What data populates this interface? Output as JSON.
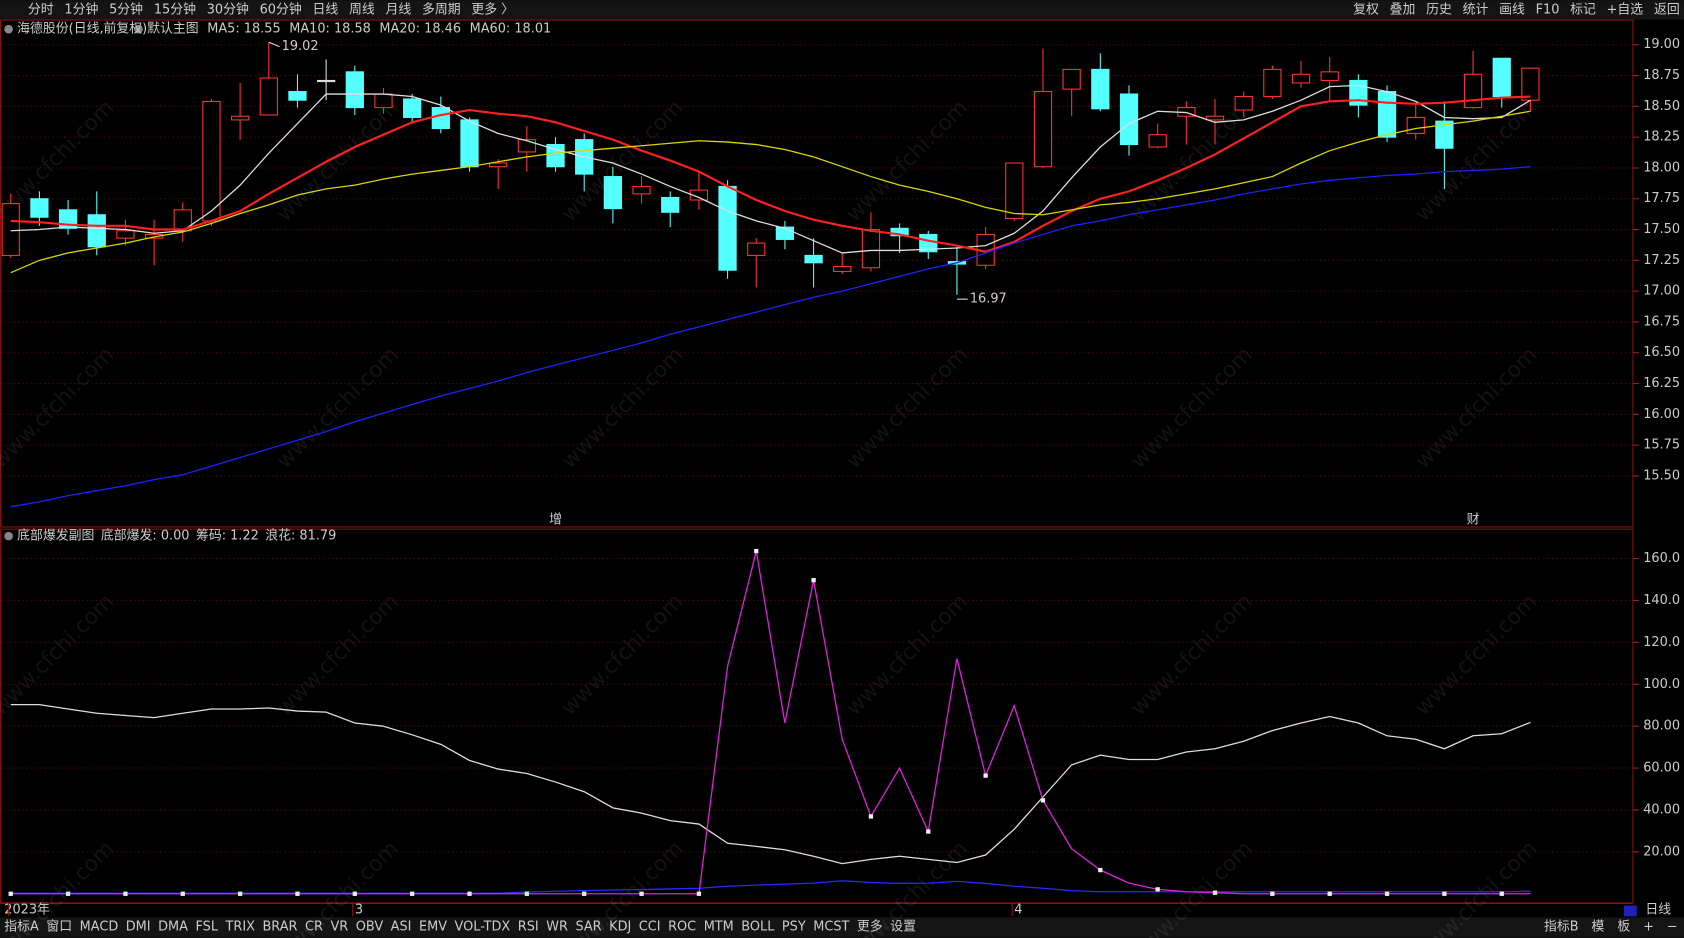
{
  "toolbar": {
    "periods": [
      "分时",
      "1分钟",
      "5分钟",
      "15分钟",
      "30分钟",
      "60分钟",
      "日线",
      "周线",
      "月线",
      "多周期",
      "更多 〉"
    ],
    "selected": "日线",
    "tools": [
      "复权",
      "叠加",
      "历史",
      "统计",
      "画线",
      "F10",
      "标记",
      "+自选",
      "返回"
    ]
  },
  "watermark": "www.cfchi.com",
  "chart_data": [
    {
      "type": "candlestick",
      "title": "海德股份(日线,前复权)",
      "subtitle": "默认主图",
      "categories": [
        "2023年",
        null,
        null,
        null,
        null,
        null,
        null,
        null,
        null,
        null,
        null,
        null,
        "3",
        null,
        null,
        null,
        null,
        null,
        null,
        null,
        null,
        null,
        null,
        null,
        null,
        null,
        null,
        null,
        null,
        null,
        null,
        null,
        null,
        null,
        null,
        "4",
        null,
        null,
        null,
        null,
        null,
        null,
        null,
        null,
        null,
        null,
        null,
        null,
        null,
        null,
        null,
        null,
        null,
        null
      ],
      "open": [
        17.29,
        17.75,
        17.66,
        17.62,
        17.43,
        17.43,
        17.49,
        17.57,
        18.39,
        18.43,
        18.62,
        18.71,
        18.78,
        18.49,
        18.56,
        18.49,
        18.39,
        18.01,
        18.13,
        18.19,
        18.23,
        17.93,
        17.79,
        17.76,
        17.74,
        17.85,
        17.29,
        17.52,
        17.29,
        17.16,
        17.19,
        17.51,
        17.46,
        17.24,
        17.21,
        17.59,
        18.01,
        18.64,
        18.8,
        18.6,
        18.17,
        18.42,
        18.39,
        18.47,
        18.58,
        18.69,
        18.71,
        18.71,
        18.62,
        18.28,
        18.38,
        18.49,
        18.89,
        18.55
      ],
      "high": [
        17.79,
        17.81,
        17.74,
        17.81,
        17.58,
        17.58,
        17.72,
        18.56,
        18.69,
        19.02,
        18.76,
        18.88,
        18.83,
        18.65,
        18.6,
        18.58,
        18.41,
        18.07,
        18.34,
        18.25,
        18.28,
        18.01,
        17.93,
        17.81,
        17.97,
        17.9,
        17.43,
        17.57,
        17.43,
        17.31,
        17.64,
        17.55,
        17.49,
        17.36,
        17.52,
        18.04,
        18.97,
        18.8,
        18.93,
        18.67,
        18.36,
        18.54,
        18.56,
        18.62,
        18.83,
        18.87,
        18.9,
        18.76,
        18.67,
        18.53,
        18.54,
        18.95,
        18.89,
        18.81
      ],
      "low": [
        17.27,
        17.53,
        17.46,
        17.29,
        17.37,
        17.21,
        17.4,
        17.53,
        18.23,
        18.43,
        18.49,
        18.55,
        18.43,
        18.44,
        18.36,
        18.28,
        17.97,
        17.83,
        17.97,
        17.97,
        17.81,
        17.55,
        17.71,
        17.52,
        17.66,
        17.1,
        17.03,
        17.34,
        17.03,
        17.14,
        17.16,
        17.31,
        17.26,
        16.97,
        17.18,
        17.57,
        18.0,
        18.42,
        18.46,
        18.1,
        18.16,
        18.19,
        18.19,
        18.41,
        18.56,
        18.65,
        18.54,
        18.41,
        18.21,
        18.23,
        17.83,
        18.48,
        18.49,
        18.46
      ],
      "close": [
        17.71,
        17.6,
        17.51,
        17.36,
        17.49,
        17.46,
        17.66,
        18.54,
        18.42,
        18.73,
        18.55,
        18.71,
        18.49,
        18.6,
        18.41,
        18.32,
        18.01,
        18.04,
        18.23,
        18.01,
        17.95,
        17.67,
        17.85,
        17.64,
        17.82,
        17.17,
        17.39,
        17.42,
        17.23,
        17.2,
        17.5,
        17.45,
        17.32,
        17.22,
        17.46,
        18.04,
        18.62,
        18.8,
        18.48,
        18.19,
        18.27,
        18.49,
        18.42,
        18.58,
        18.8,
        18.76,
        18.78,
        18.51,
        18.25,
        18.41,
        18.16,
        18.76,
        18.58,
        18.81
      ],
      "up_color": "#ff3232",
      "down_color": "#54ffff",
      "series": [
        {
          "name": "MA5: 18.55",
          "color": "#dddddd",
          "values": [
            17.49,
            17.5,
            17.52,
            17.51,
            17.5,
            17.47,
            17.49,
            17.65,
            17.86,
            18.12,
            18.36,
            18.6,
            18.6,
            18.6,
            18.58,
            18.51,
            18.38,
            18.28,
            18.22,
            18.15,
            18.09,
            18.04,
            17.95,
            17.85,
            17.76,
            17.65,
            17.57,
            17.51,
            17.41,
            17.31,
            17.33,
            17.33,
            17.34,
            17.35,
            17.37,
            17.47,
            17.65,
            17.92,
            18.17,
            18.36,
            18.46,
            18.45,
            18.37,
            18.39,
            18.46,
            18.55,
            18.66,
            18.67,
            18.62,
            18.54,
            18.41,
            18.4,
            18.41,
            18.55
          ]
        },
        {
          "name": "MA10: 18.58",
          "color": "#ff2020",
          "values": [
            17.57,
            17.56,
            17.54,
            17.53,
            17.53,
            17.5,
            17.5,
            17.57,
            17.65,
            17.79,
            17.92,
            18.05,
            18.17,
            18.27,
            18.37,
            18.43,
            18.47,
            18.44,
            18.42,
            18.37,
            18.3,
            18.23,
            18.14,
            18.06,
            17.97,
            17.85,
            17.74,
            17.65,
            17.58,
            17.53,
            17.49,
            17.46,
            17.41,
            17.37,
            17.32,
            17.4,
            17.53,
            17.65,
            17.75,
            17.81,
            17.9,
            18.0,
            18.11,
            18.24,
            18.37,
            18.5,
            18.54,
            18.55,
            18.53,
            18.52,
            18.53,
            18.55,
            18.57,
            18.58
          ]
        },
        {
          "name": "MA20: 18.46",
          "color": "#d6d600",
          "values": [
            17.15,
            17.25,
            17.31,
            17.35,
            17.39,
            17.44,
            17.48,
            17.55,
            17.63,
            17.7,
            17.78,
            17.83,
            17.86,
            17.91,
            17.95,
            17.98,
            18.01,
            18.05,
            18.09,
            18.12,
            18.14,
            18.16,
            18.18,
            18.2,
            18.22,
            18.21,
            18.19,
            18.15,
            18.09,
            18.01,
            17.93,
            17.86,
            17.81,
            17.75,
            17.68,
            17.63,
            17.62,
            17.66,
            17.7,
            17.72,
            17.75,
            17.79,
            17.83,
            17.88,
            17.93,
            18.04,
            18.14,
            18.21,
            18.27,
            18.32,
            18.35,
            18.38,
            18.42,
            18.46
          ]
        },
        {
          "name": "MA60: 18.01",
          "color": "#2020ff",
          "values": [
            15.25,
            15.29,
            15.34,
            15.38,
            15.42,
            15.47,
            15.51,
            15.58,
            15.65,
            15.72,
            15.79,
            15.86,
            15.94,
            16.01,
            16.08,
            16.15,
            16.21,
            16.27,
            16.34,
            16.4,
            16.46,
            16.52,
            16.58,
            16.65,
            16.71,
            16.77,
            16.83,
            16.89,
            16.95,
            17.0,
            17.06,
            17.12,
            17.18,
            17.23,
            17.31,
            17.39,
            17.46,
            17.53,
            17.57,
            17.62,
            17.66,
            17.7,
            17.74,
            17.79,
            17.83,
            17.87,
            17.9,
            17.92,
            17.94,
            17.95,
            17.97,
            17.98,
            17.99,
            18.01
          ]
        }
      ],
      "high_label": {
        "index": 9,
        "text": "19.02"
      },
      "low_label": {
        "index": 33,
        "text": "16.97"
      },
      "event_labels": [
        {
          "index": 19,
          "text": "增"
        },
        {
          "index": 51,
          "text": "财"
        }
      ],
      "ylim": [
        15.09,
        19.1
      ],
      "yticks": [
        {
          "value": 19,
          "label": "19.00"
        },
        18.75,
        {
          "value": 18.5,
          "label": "18.50"
        },
        18.25,
        {
          "value": 18,
          "label": "18.00"
        },
        17.75,
        {
          "value": 17.5,
          "label": "17.50"
        },
        17.25,
        {
          "value": 17,
          "label": "17.00"
        },
        16.75,
        {
          "value": 16.5,
          "label": "16.50"
        },
        16.25,
        {
          "value": 16,
          "label": "16.00"
        },
        15.75,
        {
          "value": 15.5,
          "label": "15.50"
        }
      ],
      "grid": true
    },
    {
      "type": "line",
      "title": "底部爆发副图",
      "series": [
        {
          "name": "底部爆发: 0.00",
          "color": "#e020e0",
          "markers": true,
          "values": [
            0,
            0,
            0,
            0,
            0,
            0,
            0,
            0,
            0,
            0,
            0,
            0,
            0,
            0,
            0,
            0,
            0,
            0,
            0,
            0,
            0,
            0,
            0,
            0,
            0,
            108.7,
            163.6,
            81.5,
            149.7,
            73.8,
            36.9,
            60.0,
            29.7,
            112.3,
            56.4,
            89.7,
            44.6,
            21.5,
            11.3,
            5.1,
            2.1,
            1.0,
            0.5,
            0,
            0,
            0,
            0,
            0,
            0,
            0,
            0,
            0,
            0,
            0
          ]
        },
        {
          "name": "筹码: 1.22",
          "color": "#2828ff",
          "values": [
            0.3,
            0.3,
            0.3,
            0.3,
            0.3,
            0.3,
            0.3,
            0.3,
            0.3,
            0.3,
            0.3,
            0.3,
            0.3,
            0.3,
            0.3,
            0.3,
            0.3,
            0.3,
            0.8,
            1.2,
            1.5,
            1.8,
            2.0,
            2.3,
            2.6,
            3.6,
            4.1,
            4.6,
            5.1,
            6.2,
            5.4,
            4.9,
            5.1,
            5.9,
            4.9,
            3.6,
            2.6,
            1.5,
            1.0,
            1.0,
            1.0,
            1.0,
            1.0,
            1.0,
            1.0,
            1.0,
            1.0,
            1.0,
            1.0,
            1.0,
            1.0,
            1.0,
            1.0,
            1.22
          ]
        },
        {
          "name": "浪花: 81.79",
          "color": "#dddddd",
          "values": [
            90.3,
            90.3,
            88.2,
            86.2,
            85.1,
            84.1,
            86.2,
            88.2,
            88.2,
            88.7,
            87.2,
            86.7,
            81.5,
            80.0,
            75.9,
            71.3,
            63.6,
            59.5,
            57.4,
            53.3,
            48.7,
            41.0,
            38.5,
            34.9,
            33.3,
            24.1,
            22.6,
            21.0,
            17.9,
            14.4,
            16.4,
            17.9,
            16.4,
            14.9,
            18.5,
            30.8,
            46.2,
            61.5,
            66.2,
            64.1,
            64.1,
            67.7,
            69.2,
            72.8,
            77.9,
            81.5,
            84.6,
            81.5,
            75.4,
            73.8,
            69.2,
            75.4,
            76.4,
            81.79
          ]
        }
      ],
      "ylim": [
        -4.1,
        173.8
      ],
      "yticks": [
        {
          "value": 160,
          "label": "160.0"
        },
        {
          "value": 140,
          "label": "140.0"
        },
        {
          "value": 120,
          "label": "120.0"
        },
        {
          "value": 100,
          "label": "100.0"
        },
        {
          "value": 80,
          "label": "80.00"
        },
        {
          "value": 60,
          "label": "60.00"
        },
        {
          "value": 40,
          "label": "40.00"
        },
        {
          "value": 20,
          "label": "20.00"
        }
      ],
      "grid": true
    }
  ],
  "bottom_bar": {
    "indicators": [
      "指标A",
      "窗口",
      "MACD",
      "DMI",
      "DMA",
      "FSL",
      "TRIX",
      "BRAR",
      "CR",
      "VR",
      "OBV",
      "ASI",
      "EMV",
      "VOL-TDX",
      "RSI",
      "WR",
      "SAR",
      "KDJ",
      "CCI",
      "ROC",
      "MTM",
      "BOLL",
      "PSY",
      "MCST",
      "更多",
      "设置"
    ],
    "highlight": "设置",
    "right": [
      "指标B",
      "模",
      "板",
      "+",
      "−"
    ],
    "period": "日线"
  }
}
